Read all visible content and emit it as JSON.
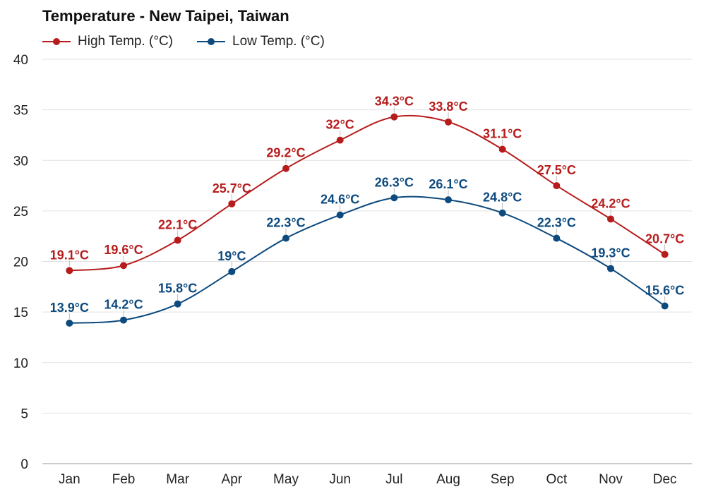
{
  "chart_data": {
    "type": "line",
    "title": "Temperature - New Taipei, Taiwan",
    "categories": [
      "Jan",
      "Feb",
      "Mar",
      "Apr",
      "May",
      "Jun",
      "Jul",
      "Aug",
      "Sep",
      "Oct",
      "Nov",
      "Dec"
    ],
    "ylim": [
      0,
      40
    ],
    "yticks": [
      0,
      5,
      10,
      15,
      20,
      25,
      30,
      35,
      40
    ],
    "grid": true,
    "legend_position": "top-left",
    "series": [
      {
        "name": "High Temp. (°C)",
        "color": "#b71c1c",
        "values": [
          19.1,
          19.6,
          22.1,
          25.7,
          29.2,
          32,
          34.3,
          33.8,
          31.1,
          27.5,
          24.2,
          20.7
        ],
        "labels": [
          "19.1°C",
          "19.6°C",
          "22.1°C",
          "25.7°C",
          "29.2°C",
          "32°C",
          "34.3°C",
          "33.8°C",
          "31.1°C",
          "27.5°C",
          "24.2°C",
          "20.7°C"
        ]
      },
      {
        "name": "Low Temp. (°C)",
        "color": "#0d4a7e",
        "values": [
          13.9,
          14.2,
          15.8,
          19,
          22.3,
          24.6,
          26.3,
          26.1,
          24.8,
          22.3,
          19.3,
          15.6
        ],
        "labels": [
          "13.9°C",
          "14.2°C",
          "15.8°C",
          "19°C",
          "22.3°C",
          "24.6°C",
          "26.3°C",
          "26.1°C",
          "24.8°C",
          "22.3°C",
          "19.3°C",
          "15.6°C"
        ]
      }
    ]
  }
}
